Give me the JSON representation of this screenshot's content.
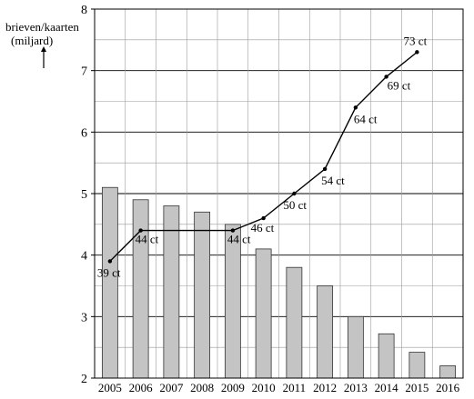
{
  "chart_data": {
    "type": "bar",
    "ylabel_line1": "brieven/kaarten",
    "ylabel_line2": "(miljard)",
    "categories": [
      "2005",
      "2006",
      "2007",
      "2008",
      "2009",
      "2010",
      "2011",
      "2012",
      "2013",
      "2014",
      "2015",
      "2016"
    ],
    "ylim": [
      2,
      8
    ],
    "yticks": [
      "2",
      "3",
      "4",
      "5",
      "6",
      "7",
      "8"
    ],
    "bar_values": [
      5.1,
      4.9,
      4.8,
      4.7,
      4.5,
      4.1,
      3.8,
      3.5,
      3.0,
      2.72,
      2.42,
      2.2
    ],
    "grid": true,
    "line": {
      "points": [
        {
          "x": 2005.5,
          "y": 3.9,
          "label": "39 ct"
        },
        {
          "x": 2006.5,
          "y": 4.4,
          "label": "44 ct"
        },
        {
          "x": 2009.5,
          "y": 4.4,
          "label": "44 ct"
        },
        {
          "x": 2010.5,
          "y": 4.6,
          "label": "46 ct"
        },
        {
          "x": 2011.5,
          "y": 5.0,
          "label": "50 ct"
        },
        {
          "x": 2012.5,
          "y": 5.4,
          "label": "54 ct"
        },
        {
          "x": 2013.5,
          "y": 6.4,
          "label": "64 ct"
        },
        {
          "x": 2014.5,
          "y": 6.9,
          "label": "69 ct"
        },
        {
          "x": 2015.5,
          "y": 7.3,
          "label": "73 ct"
        }
      ]
    },
    "colors": {
      "bar_fill": "#c4c4c4",
      "bar_stroke": "#333333",
      "line": "#000000",
      "grid": "#000000"
    }
  }
}
